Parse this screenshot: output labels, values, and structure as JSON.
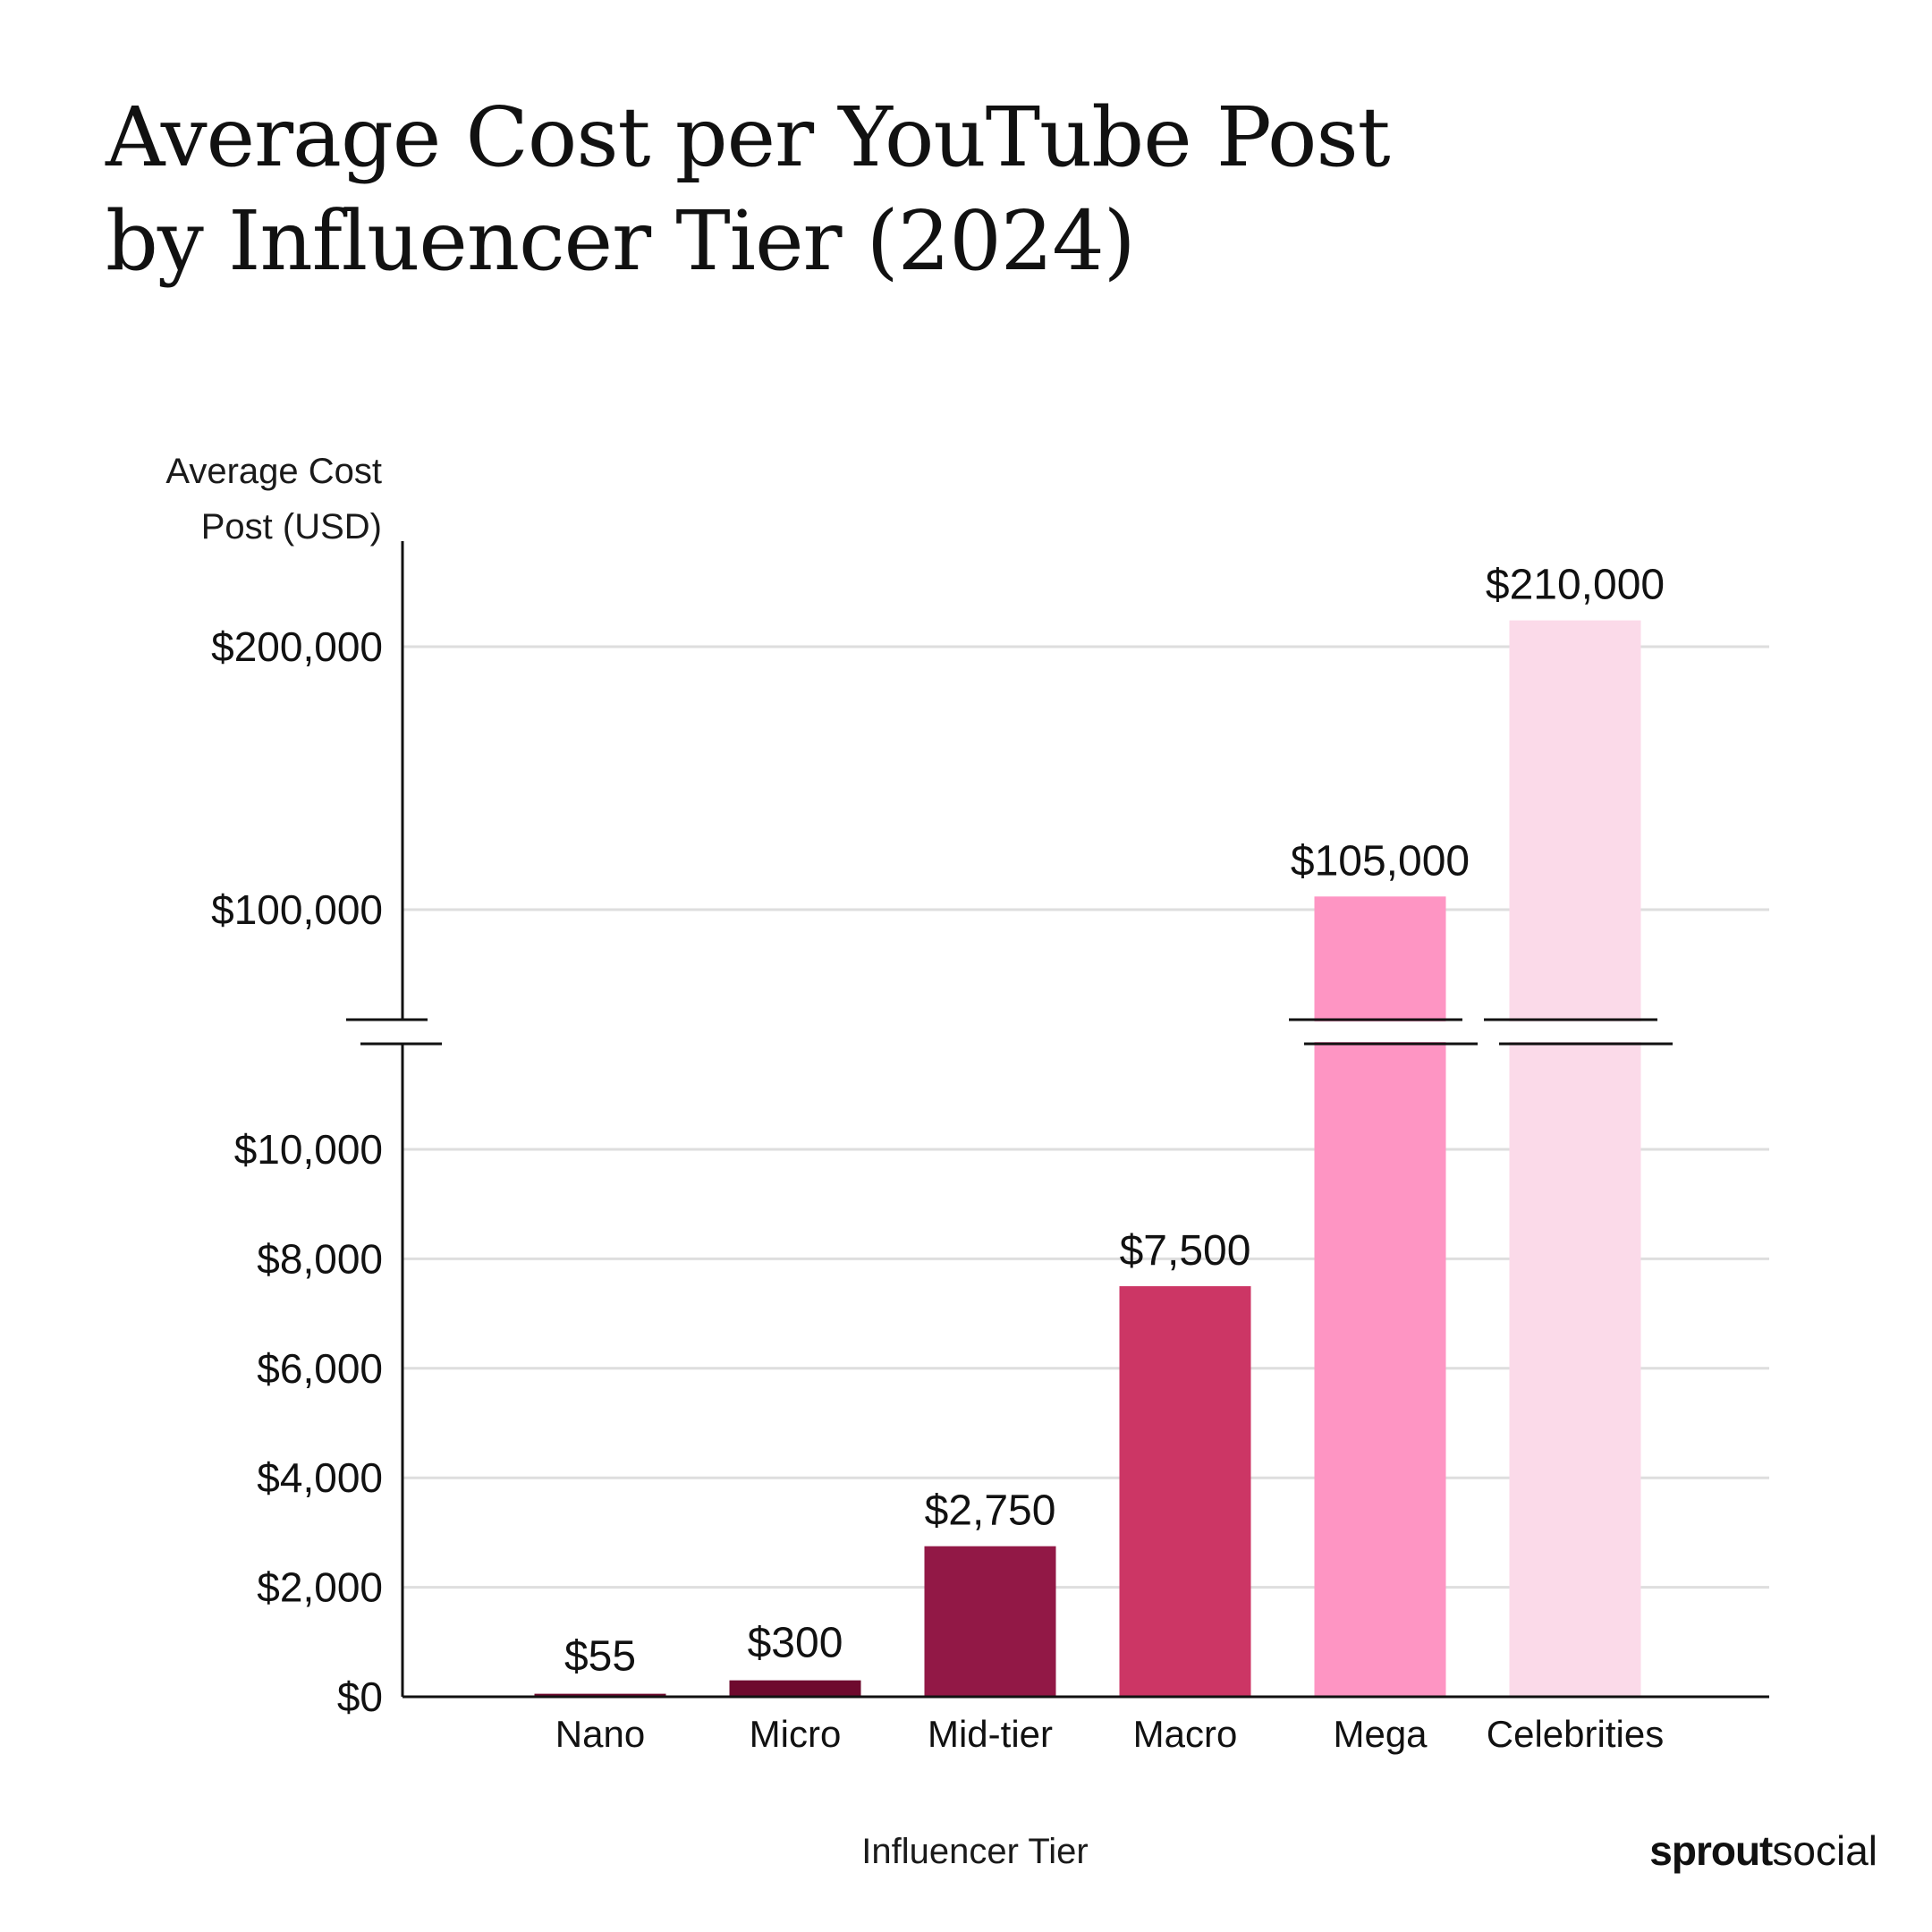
{
  "chart_data": {
    "type": "bar",
    "title_lines": [
      "Average Cost per YouTube Post",
      "by Influencer Tier (2024)"
    ],
    "ylabel_lines": [
      "Average Cost",
      "Post (USD)"
    ],
    "xlabel": "Influencer Tier",
    "categories": [
      "Nano",
      "Micro",
      "Mid-tier",
      "Macro",
      "Mega",
      "Celebrities"
    ],
    "values": [
      55,
      300,
      2750,
      7500,
      105000,
      210000
    ],
    "value_labels": [
      "$55",
      "$300",
      "$2,750",
      "$7,500",
      "$105,000",
      "$210,000"
    ],
    "colors": [
      "#6e0a2e",
      "#6e0a2e",
      "#921846",
      "#cc3665",
      "#fe95c3",
      "#fbdae9"
    ],
    "axis_break": true,
    "lower_segment": {
      "ylim": [
        0,
        10000
      ],
      "ticks": [
        0,
        2000,
        4000,
        6000,
        8000,
        10000
      ],
      "tick_labels": [
        "$0",
        "$2,000",
        "$4,000",
        "$6,000",
        "$8,000",
        "$10,000"
      ]
    },
    "upper_segment": {
      "ylim": [
        100000,
        200000
      ],
      "ticks": [
        100000,
        200000
      ],
      "tick_labels": [
        "$100,000",
        "$200,000"
      ]
    },
    "grid": true,
    "legend": "none"
  },
  "branding": {
    "logo_bold": "sprout",
    "logo_light": "social"
  }
}
